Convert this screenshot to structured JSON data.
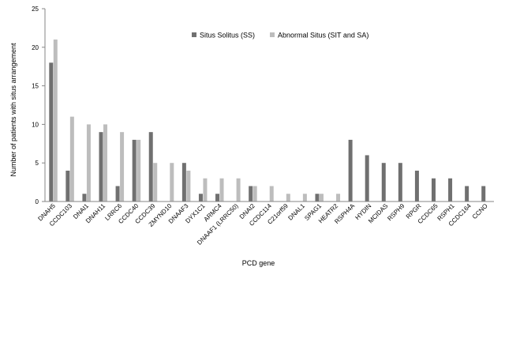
{
  "chart_data": {
    "type": "bar",
    "title": "",
    "xlabel": "PCD gene",
    "ylabel": "Number of patients with situs arrangement",
    "ylim": [
      0,
      25
    ],
    "yticks": [
      0,
      5,
      10,
      15,
      20,
      25
    ],
    "grid": false,
    "legend_position": "top-center",
    "categories": [
      "DNAH5",
      "CCDC103",
      "DNAI1",
      "DNAH11",
      "LRRC6",
      "CCDC40",
      "CCDC39",
      "ZMYND10",
      "DNAAF3",
      "DYX1C1",
      "ARMC4",
      "DNAAF1 (LRRC50)",
      "DNAI2",
      "CCDC114",
      "C21orf59",
      "DNAL1",
      "SPAG1",
      "HEATR2",
      "RSPH4A",
      "HYDIN",
      "MCIDAS",
      "RSPH9",
      "RPGR",
      "CCDC65",
      "RSPH1",
      "CCDC164",
      "CCNO"
    ],
    "series": [
      {
        "name": "Situs Solitus (SS)",
        "color": "#707070",
        "values": [
          18,
          4,
          1,
          9,
          2,
          8,
          9,
          0,
          5,
          1,
          1,
          0,
          2,
          0,
          0,
          0,
          1,
          0,
          8,
          6,
          5,
          5,
          4,
          3,
          3,
          2,
          2
        ]
      },
      {
        "name": "Abnormal Situs (SIT and SA)",
        "color": "#bdbdbd",
        "values": [
          21,
          11,
          10,
          10,
          9,
          8,
          5,
          5,
          4,
          3,
          3,
          3,
          2,
          2,
          1,
          1,
          1,
          1,
          0,
          0,
          0,
          0,
          0,
          0,
          0,
          0,
          0
        ]
      }
    ]
  }
}
